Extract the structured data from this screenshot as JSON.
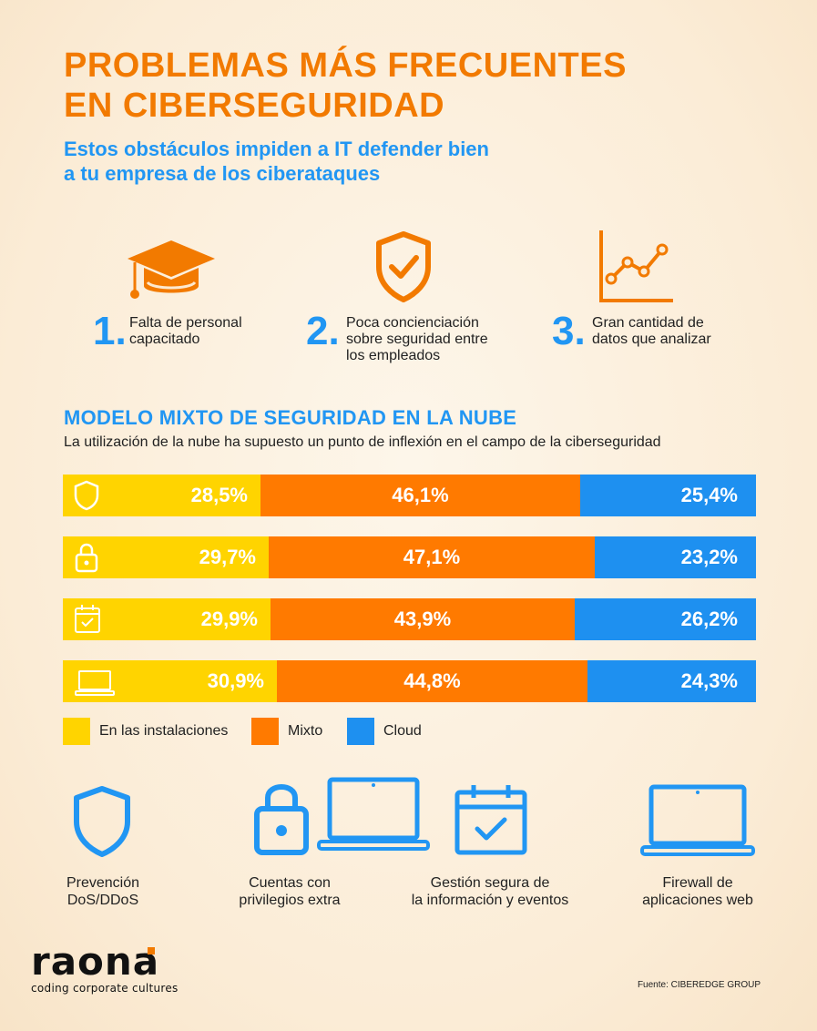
{
  "title_line1": "PROBLEMAS MÁS FRECUENTES",
  "title_line2": "EN CIBERSEGURIDAD",
  "subtitle_line1": "Estos obstáculos impiden a IT defender bien",
  "subtitle_line2": "a tu empresa de los ciberataques",
  "problems": [
    {
      "num": "1.",
      "lines": [
        "Falta de personal",
        "capacitado"
      ],
      "icon": "graduation-cap-icon"
    },
    {
      "num": "2.",
      "lines": [
        "Poca concienciación",
        "sobre seguridad entre",
        "los empleados"
      ],
      "icon": "shield-check-icon"
    },
    {
      "num": "3.",
      "lines": [
        "Gran cantidad de",
        "datos que analizar"
      ],
      "icon": "line-chart-icon"
    }
  ],
  "section_title": "MODELO MIXTO DE SEGURIDAD EN LA NUBE",
  "section_subtitle": "La utilización de la nube ha supuesto un punto de inflexión en el campo de la ciberseguridad",
  "chart_data": {
    "type": "bar",
    "stacked": true,
    "orientation": "horizontal",
    "categories": [
      "Prevención DoS/DDoS",
      "Cuentas con privilegios extra",
      "Gestión segura de la información y eventos",
      "Firewall de aplicaciones web"
    ],
    "category_icons": [
      "shield-icon",
      "lock-icon",
      "calendar-check-icon",
      "laptop-icon"
    ],
    "series": [
      {
        "name": "En las instalaciones",
        "color": "#ffd400",
        "values": [
          28.5,
          29.7,
          29.9,
          30.9
        ],
        "labels": [
          "28,5%",
          "29,7%",
          "29,9%",
          "30,9%"
        ]
      },
      {
        "name": "Mixto",
        "color": "#ff7a00",
        "values": [
          46.1,
          47.1,
          43.9,
          44.8
        ],
        "labels": [
          "46,1%",
          "47,1%",
          "43,9%",
          "44,8%"
        ]
      },
      {
        "name": "Cloud",
        "color": "#1e90f0",
        "values": [
          25.4,
          23.2,
          26.2,
          24.3
        ],
        "labels": [
          "25,4%",
          "23,2%",
          "26,2%",
          "24,3%"
        ]
      }
    ],
    "legend_position": "bottom-left"
  },
  "features": [
    {
      "icon": "shield-icon",
      "lines": [
        "Prevención",
        "DoS/DDoS"
      ]
    },
    {
      "icon": "lock-laptop-icon",
      "lines": [
        "Cuentas con",
        "privilegios extra"
      ]
    },
    {
      "icon": "calendar-check-icon",
      "lines": [
        "Gestión segura de",
        "la información y eventos"
      ]
    },
    {
      "icon": "laptop-icon",
      "lines": [
        "Firewall de",
        "aplicaciones web"
      ]
    }
  ],
  "brand": {
    "name": "raona",
    "tagline": "coding corporate cultures"
  },
  "source": "Fuente: CIBEREDGE GROUP",
  "colors": {
    "orange": "#f27a00",
    "blue": "#2196f3",
    "yellow": "#ffd400"
  }
}
